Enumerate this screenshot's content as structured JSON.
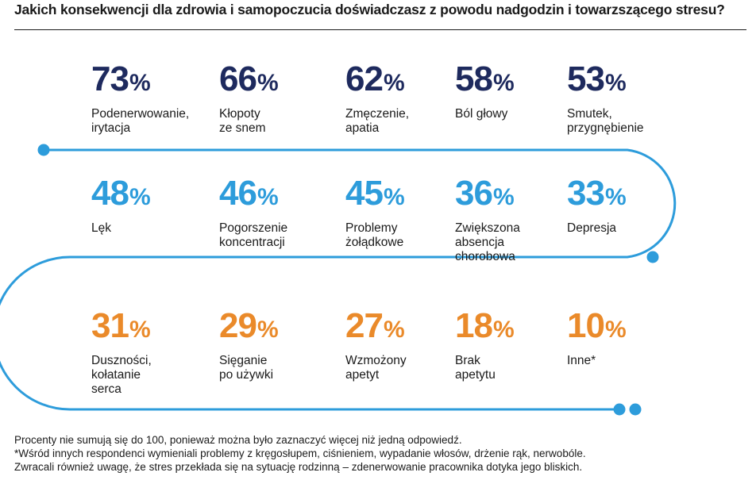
{
  "title": "Jakich konsekwencji dla zdrowia i samopoczucia doświadczasz z powodu nadgodzin i towarzszącego stresu?",
  "percent_sign": "%",
  "colors": {
    "row1": "#1e2a5e",
    "row2": "#2d9cdb",
    "row3": "#ea8a2a",
    "track": "#2d9cdb"
  },
  "rows": [
    {
      "items": [
        {
          "value": "73",
          "label_lines": [
            "Podenerwowanie,",
            "irytacja"
          ]
        },
        {
          "value": "66",
          "label_lines": [
            "Kłopoty",
            "ze snem"
          ]
        },
        {
          "value": "62",
          "label_lines": [
            "Zmęczenie,",
            "apatia"
          ]
        },
        {
          "value": "58",
          "label_lines": [
            "Ból głowy"
          ]
        },
        {
          "value": "53",
          "label_lines": [
            "Smutek,",
            "przygnębienie"
          ]
        }
      ]
    },
    {
      "items": [
        {
          "value": "48",
          "label_lines": [
            "Lęk"
          ]
        },
        {
          "value": "46",
          "label_lines": [
            "Pogorszenie",
            "koncentracji"
          ]
        },
        {
          "value": "45",
          "label_lines": [
            "Problemy",
            "żołądkowe"
          ]
        },
        {
          "value": "36",
          "label_lines": [
            "Zwiększona",
            "absencja",
            "chorobowa"
          ]
        },
        {
          "value": "33",
          "label_lines": [
            "Depresja"
          ]
        }
      ]
    },
    {
      "items": [
        {
          "value": "31",
          "label_lines": [
            "Duszności,",
            "kołatanie",
            "serca"
          ]
        },
        {
          "value": "29",
          "label_lines": [
            "Sięganie",
            "po używki"
          ]
        },
        {
          "value": "27",
          "label_lines": [
            "Wzmożony",
            "apetyt"
          ]
        },
        {
          "value": "18",
          "label_lines": [
            "Brak",
            "apetytu"
          ]
        },
        {
          "value": "10",
          "label_lines": [
            "Inne*"
          ]
        }
      ]
    }
  ],
  "footnotes": [
    "Procenty nie sumują się do 100, ponieważ można było zaznaczyć więcej niż jedną odpowiedź.",
    "*Wśród innych respondenci wymieniali problemy z kręgosłupem, ciśnieniem, wypadanie włosów, drżenie rąk, nerwobóle.",
    "Zwracali również uwagę, że stres przekłada się na sytuację rodzinną – zdenerwowanie pracownika dotyka jego bliskich."
  ]
}
